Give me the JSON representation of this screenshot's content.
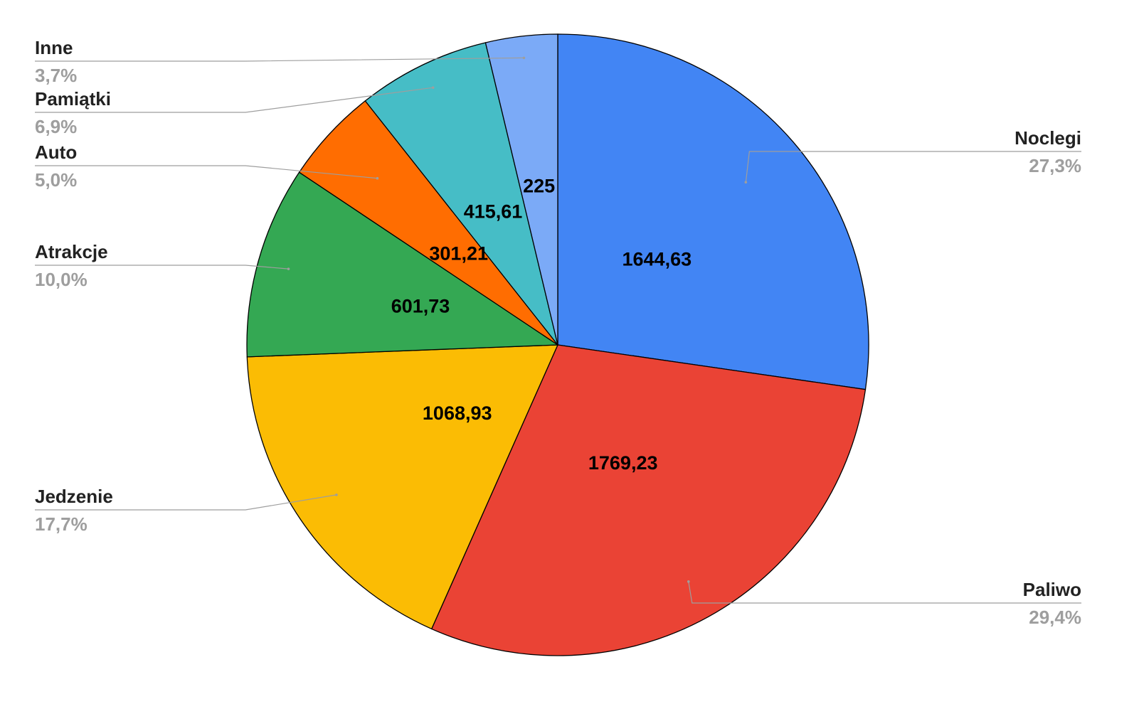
{
  "chart_data": {
    "type": "pie",
    "slices": [
      {
        "label": "Noclegi",
        "value": 1644.63,
        "value_label": "1644,63",
        "percent_label": "27,3%",
        "color": "#4285f4"
      },
      {
        "label": "Paliwo",
        "value": 1769.23,
        "value_label": "1769,23",
        "percent_label": "29,4%",
        "color": "#ea4335"
      },
      {
        "label": "Jedzenie",
        "value": 1068.93,
        "value_label": "1068,93",
        "percent_label": "17,7%",
        "color": "#fbbc04"
      },
      {
        "label": "Atrakcje",
        "value": 601.73,
        "value_label": "601,73",
        "percent_label": "10,0%",
        "color": "#34a853"
      },
      {
        "label": "Auto",
        "value": 301.21,
        "value_label": "301,21",
        "percent_label": "5,0%",
        "color": "#ff6d01"
      },
      {
        "label": "Pamiątki",
        "value": 415.61,
        "value_label": "415,61",
        "percent_label": "6,9%",
        "color": "#46bdc6"
      },
      {
        "label": "Inne",
        "value": 225,
        "value_label": "225",
        "percent_label": "3,7%",
        "color": "#7baaf7"
      }
    ],
    "start_direction": "12 o'clock",
    "direction": "clockwise",
    "legend": "none"
  }
}
